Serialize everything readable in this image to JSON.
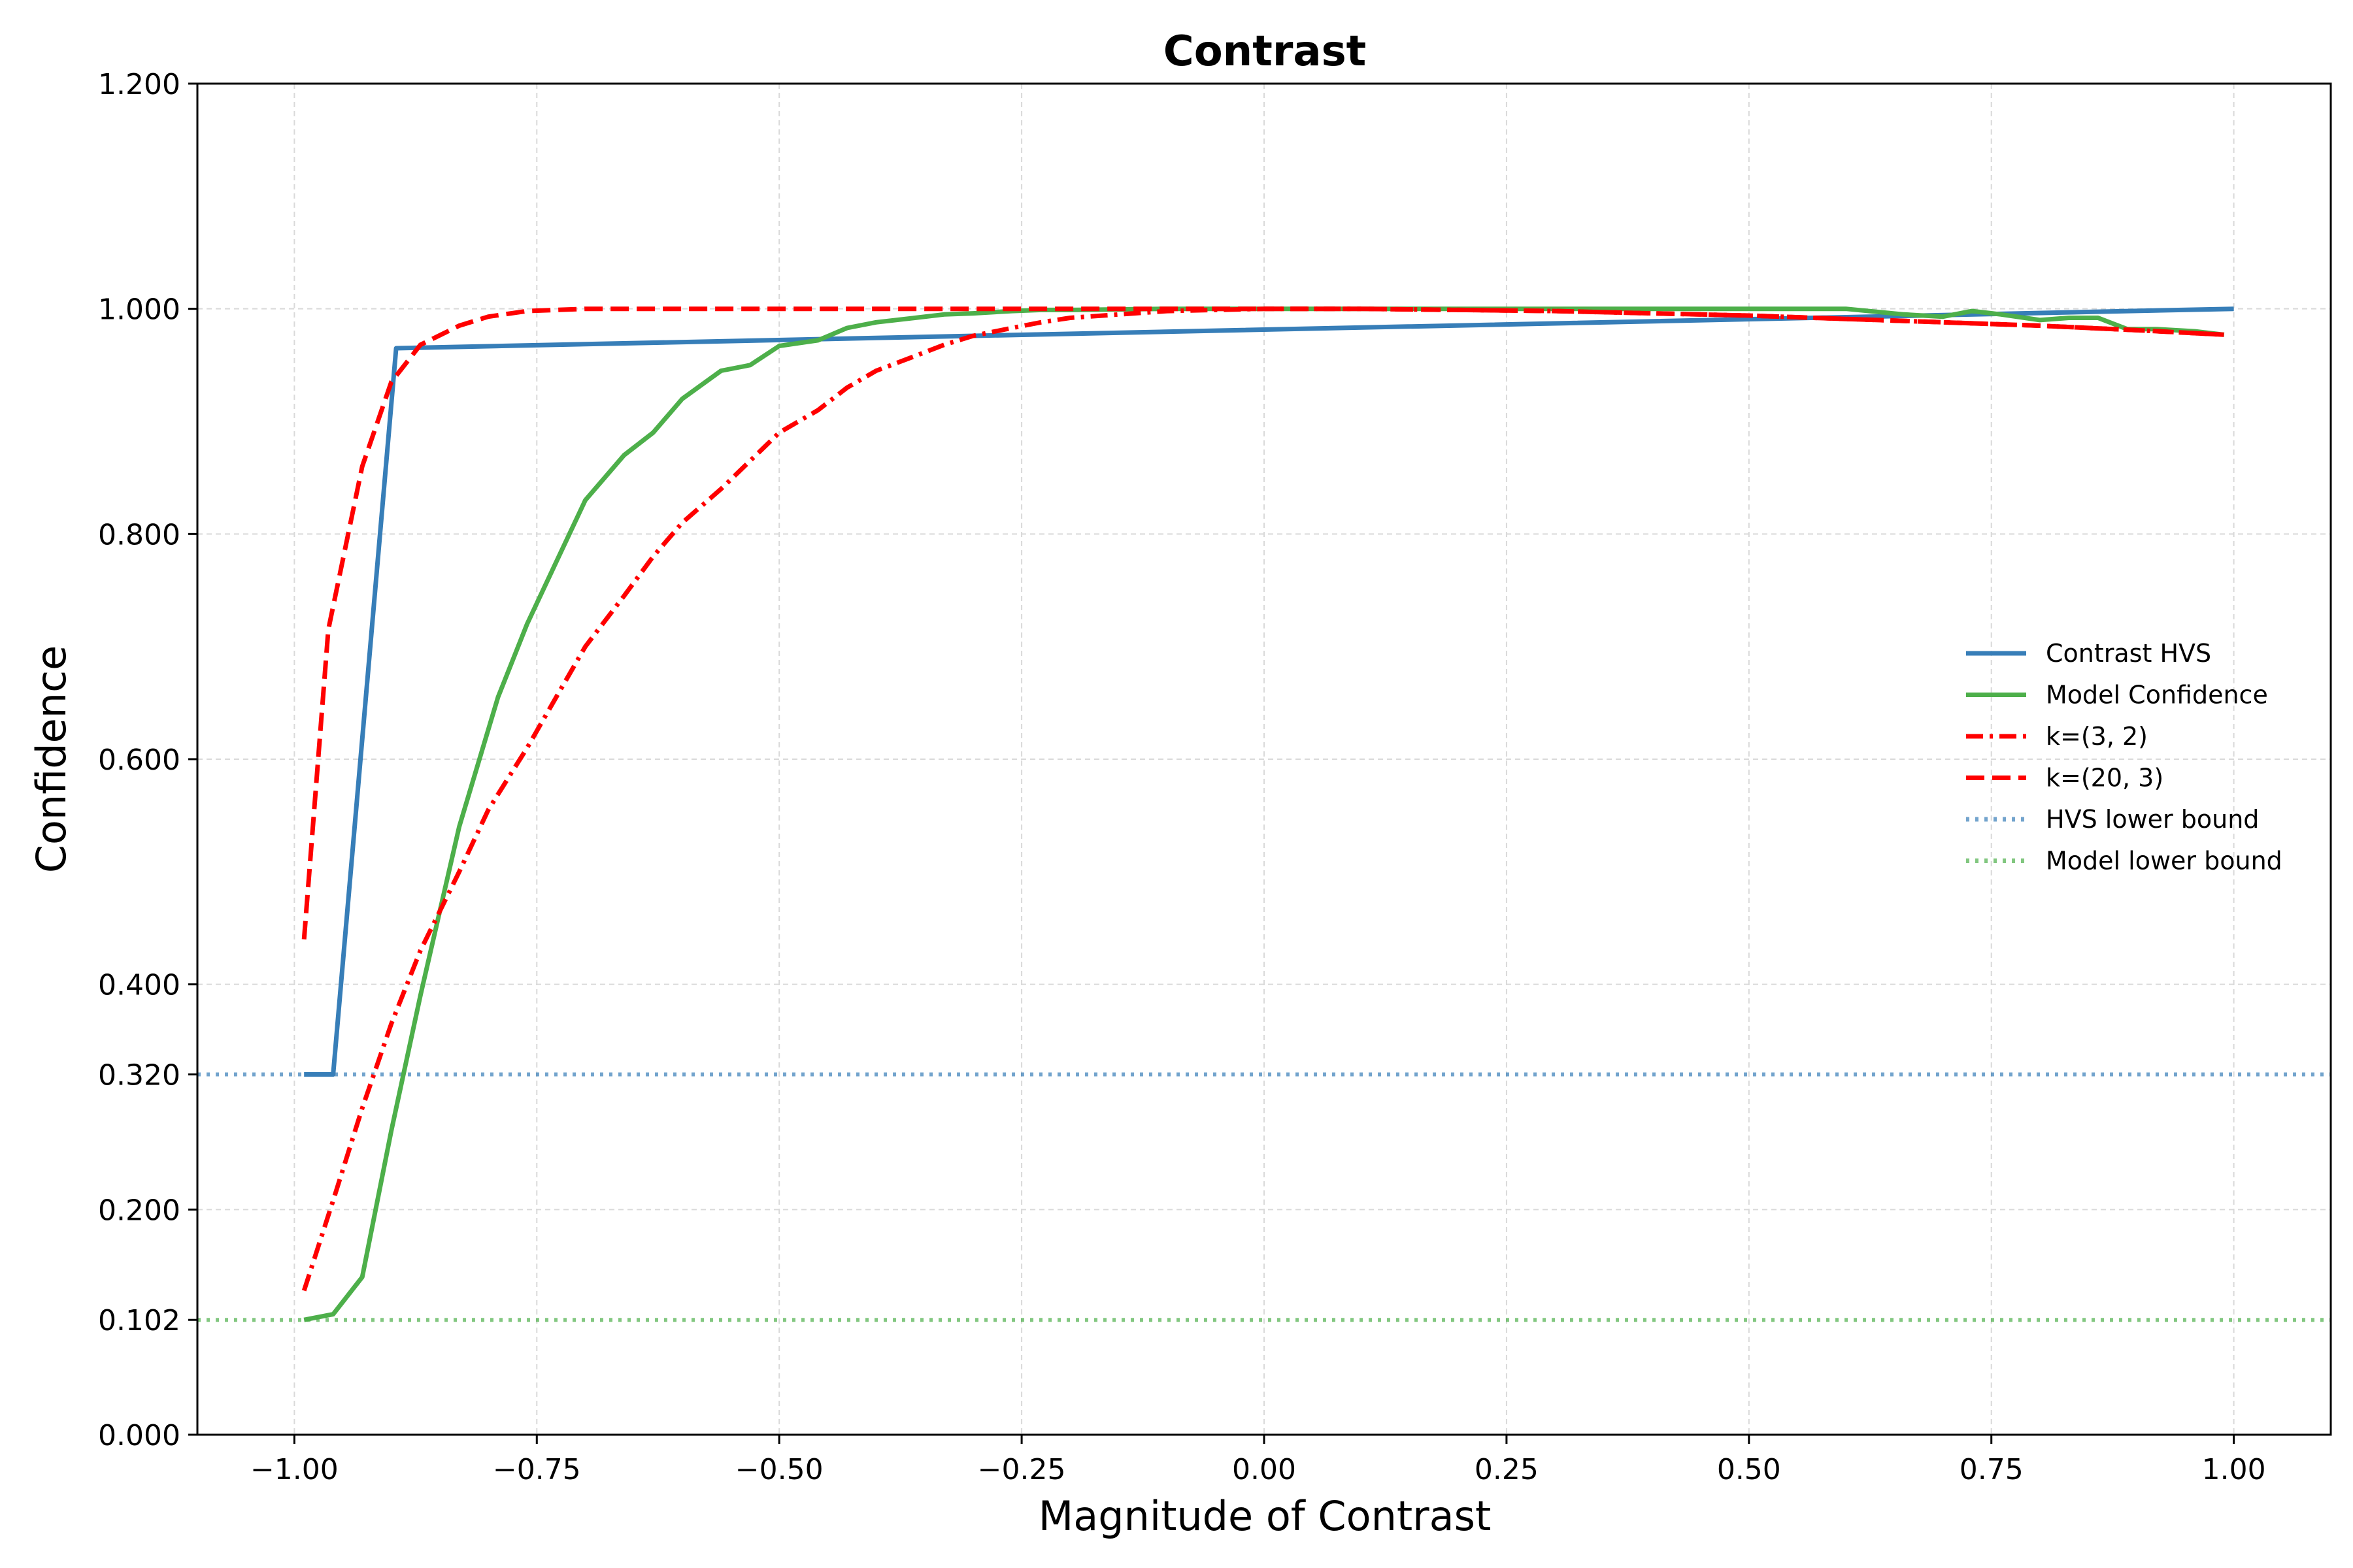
{
  "chart_data": {
    "type": "line",
    "title": "Contrast",
    "xlabel": "Magnitude of Contrast",
    "ylabel": "Confidence",
    "xlim": [
      -1.1,
      1.1
    ],
    "ylim": [
      0.0,
      1.2
    ],
    "grid": true,
    "legend_position": "center-right",
    "xticks": [
      {
        "value": -1.0,
        "label": "−1.00"
      },
      {
        "value": -0.75,
        "label": "−0.75"
      },
      {
        "value": -0.5,
        "label": "−0.50"
      },
      {
        "value": -0.25,
        "label": "−0.25"
      },
      {
        "value": 0.0,
        "label": "0.00"
      },
      {
        "value": 0.25,
        "label": "0.25"
      },
      {
        "value": 0.5,
        "label": "0.50"
      },
      {
        "value": 0.75,
        "label": "0.75"
      },
      {
        "value": 1.0,
        "label": "1.00"
      }
    ],
    "yticks": [
      {
        "value": 0.0,
        "label": "0.000",
        "color": "#000000"
      },
      {
        "value": 0.102,
        "label": "0.102",
        "color": "#4daf4a"
      },
      {
        "value": 0.2,
        "label": "0.200",
        "color": "#000000"
      },
      {
        "value": 0.32,
        "label": "0.320",
        "color": "#377eb8"
      },
      {
        "value": 0.4,
        "label": "0.400",
        "color": "#000000"
      },
      {
        "value": 0.6,
        "label": "0.600",
        "color": "#000000"
      },
      {
        "value": 0.8,
        "label": "0.800",
        "color": "#000000"
      },
      {
        "value": 1.0,
        "label": "1.000",
        "color": "#000000"
      },
      {
        "value": 1.2,
        "label": "1.200",
        "color": "#000000"
      }
    ],
    "series": [
      {
        "name": "Contrast HVS",
        "color": "#377eb8",
        "style": "solid",
        "x": [
          -0.99,
          -0.96,
          -0.895,
          1.0
        ],
        "y": [
          0.32,
          0.32,
          0.965,
          1.0
        ]
      },
      {
        "name": "Model Confidence",
        "color": "#4daf4a",
        "style": "solid",
        "x": [
          -0.99,
          -0.96,
          -0.93,
          -0.9,
          -0.87,
          -0.83,
          -0.79,
          -0.76,
          -0.73,
          -0.7,
          -0.66,
          -0.63,
          -0.6,
          -0.56,
          -0.53,
          -0.5,
          -0.46,
          -0.43,
          -0.4,
          -0.36,
          -0.33,
          -0.3,
          -0.26,
          -0.23,
          -0.2,
          -0.1,
          0.0,
          0.1,
          0.2,
          0.3,
          0.4,
          0.5,
          0.6,
          0.66,
          0.7,
          0.73,
          0.76,
          0.8,
          0.83,
          0.86,
          0.89,
          0.92,
          0.96,
          0.99
        ],
        "y": [
          0.102,
          0.107,
          0.14,
          0.27,
          0.39,
          0.54,
          0.655,
          0.72,
          0.775,
          0.83,
          0.87,
          0.89,
          0.92,
          0.945,
          0.95,
          0.967,
          0.972,
          0.983,
          0.988,
          0.992,
          0.995,
          0.996,
          0.998,
          0.999,
          0.999,
          1.0,
          1.0,
          1.0,
          1.0,
          1.0,
          1.0,
          1.0,
          1.0,
          0.995,
          0.993,
          0.998,
          0.995,
          0.99,
          0.992,
          0.992,
          0.982,
          0.982,
          0.98,
          0.977
        ]
      },
      {
        "name": "k=(3, 2)",
        "color": "#ff0000",
        "style": "dashdot",
        "x": [
          -0.99,
          -0.96,
          -0.93,
          -0.9,
          -0.87,
          -0.83,
          -0.8,
          -0.76,
          -0.73,
          -0.7,
          -0.66,
          -0.63,
          -0.6,
          -0.56,
          -0.53,
          -0.5,
          -0.46,
          -0.43,
          -0.4,
          -0.36,
          -0.33,
          -0.3,
          -0.26,
          -0.23,
          -0.2,
          -0.15,
          -0.1,
          -0.05,
          0.0,
          0.1,
          0.2,
          0.3,
          0.4,
          0.5,
          0.6,
          0.7,
          0.8,
          0.9,
          0.99
        ],
        "y": [
          0.128,
          0.208,
          0.29,
          0.365,
          0.43,
          0.5,
          0.555,
          0.61,
          0.655,
          0.7,
          0.745,
          0.78,
          0.81,
          0.84,
          0.865,
          0.89,
          0.91,
          0.93,
          0.945,
          0.958,
          0.968,
          0.976,
          0.983,
          0.988,
          0.992,
          0.995,
          0.998,
          0.999,
          1.0,
          1.0,
          0.999,
          0.998,
          0.996,
          0.994,
          0.991,
          0.988,
          0.985,
          0.981,
          0.977
        ]
      },
      {
        "name": "k=(20, 3)",
        "color": "#ff0000",
        "style": "dashed",
        "x": [
          -0.99,
          -0.965,
          -0.93,
          -0.9,
          -0.87,
          -0.83,
          -0.8,
          -0.76,
          -0.73,
          -0.7,
          -0.66,
          -0.63,
          -0.6,
          -0.5,
          -0.3,
          -0.1,
          0.0,
          0.1,
          0.2,
          0.3,
          0.4,
          0.5,
          0.6,
          0.7,
          0.8,
          0.9,
          0.99
        ],
        "y": [
          0.44,
          0.715,
          0.86,
          0.935,
          0.968,
          0.985,
          0.993,
          0.998,
          0.999,
          1.0,
          1.0,
          1.0,
          1.0,
          1.0,
          1.0,
          1.0,
          1.0,
          1.0,
          0.999,
          0.998,
          0.996,
          0.994,
          0.991,
          0.988,
          0.985,
          0.981,
          0.977
        ]
      },
      {
        "name": "HVS lower bound",
        "color": "#377eb8",
        "style": "dotted",
        "hline": 0.32
      },
      {
        "name": "Model lower bound",
        "color": "#4daf4a",
        "style": "dotted",
        "hline": 0.102
      }
    ]
  }
}
